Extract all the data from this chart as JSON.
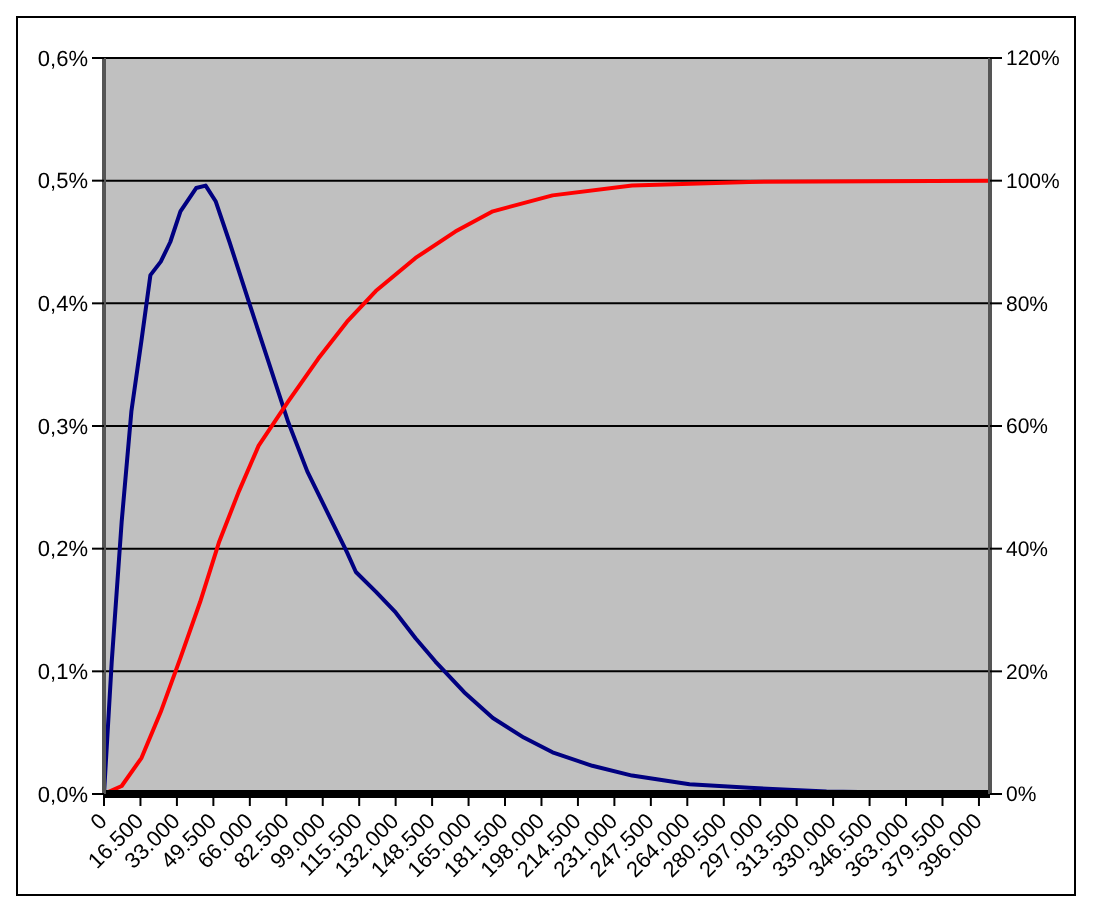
{
  "chart_data": {
    "type": "line",
    "xlim": [
      0,
      401000
    ],
    "xticks": [
      0,
      {
        "value": 16500,
        "label": "16.500"
      },
      {
        "value": 33000,
        "label": "33.000"
      },
      {
        "value": 49500,
        "label": "49.500"
      },
      {
        "value": 66000,
        "label": "66.000"
      },
      {
        "value": 82500,
        "label": "82.500"
      },
      {
        "value": 99000,
        "label": "99.000"
      },
      {
        "value": 115500,
        "label": "115.500"
      },
      {
        "value": 132000,
        "label": "132.000"
      },
      {
        "value": 148500,
        "label": "148.500"
      },
      {
        "value": 165000,
        "label": "165.000"
      },
      {
        "value": 181500,
        "label": "181.500"
      },
      {
        "value": 198000,
        "label": "198.000"
      },
      {
        "value": 214500,
        "label": "214.500"
      },
      {
        "value": 231000,
        "label": "231.000"
      },
      {
        "value": 247500,
        "label": "247.500"
      },
      {
        "value": 264000,
        "label": "264.000"
      },
      {
        "value": 280500,
        "label": "280.500"
      },
      {
        "value": 297000,
        "label": "297.000"
      },
      {
        "value": 313500,
        "label": "313.500"
      },
      {
        "value": 330000,
        "label": "330.000"
      },
      {
        "value": 346500,
        "label": "346.500"
      },
      {
        "value": 363000,
        "label": "363.000"
      },
      {
        "value": 379500,
        "label": "379.500"
      },
      {
        "value": 396000,
        "label": "396.000"
      }
    ],
    "ylim": [
      0,
      0.6
    ],
    "yticks": [
      {
        "value": 0,
        "label": "0,0%"
      },
      {
        "value": 0.1,
        "label": "0,1%"
      },
      {
        "value": 0.2,
        "label": "0,2%"
      },
      {
        "value": 0.3,
        "label": "0,3%"
      },
      {
        "value": 0.4,
        "label": "0,4%"
      },
      {
        "value": 0.5,
        "label": "0,5%"
      },
      {
        "value": 0.6,
        "label": "0,6%"
      }
    ],
    "y2lim": [
      0,
      120
    ],
    "y2ticks": [
      {
        "value": 0,
        "label": "0%"
      },
      {
        "value": 20,
        "label": "20%"
      },
      {
        "value": 40,
        "label": "40%"
      },
      {
        "value": 60,
        "label": "60%"
      },
      {
        "value": 80,
        "label": "80%"
      },
      {
        "value": 100,
        "label": "100%"
      },
      {
        "value": 120,
        "label": "120%"
      }
    ],
    "grid": "y",
    "marker": "none",
    "line_style": "solid",
    "series": [
      {
        "color": "#000080",
        "x": [
          0,
          3500,
          8000,
          12400,
          16900,
          21000,
          25700,
          30000,
          34600,
          41700,
          46000,
          50600,
          56800,
          65600,
          74500,
          83400,
          92000,
          101000,
          110000,
          114000,
          123000,
          132000,
          141000,
          150000,
          163000,
          176000,
          190000,
          203000,
          221000,
          239000,
          265000,
          292000,
          327000,
          401000
        ],
        "values": [
          0,
          0.108,
          0.222,
          0.312,
          0.369,
          0.423,
          0.434,
          0.45,
          0.475,
          0.494,
          0.496,
          0.483,
          0.45,
          0.401,
          0.352,
          0.303,
          0.263,
          0.23,
          0.197,
          0.181,
          0.165,
          0.148,
          0.127,
          0.108,
          0.083,
          0.062,
          0.046,
          0.034,
          0.023,
          0.015,
          0.008,
          0.005,
          0.002,
          0
        ]
      },
      {
        "color": "#ff0000",
        "axis": "y2",
        "x": [
          0,
          8000,
          17000,
          25700,
          34600,
          43500,
          52000,
          61000,
          70000,
          83400,
          97000,
          110000,
          123000,
          141000,
          159000,
          176000,
          203000,
          239000,
          292000,
          401000
        ],
        "values": [
          0,
          1.3,
          5.9,
          13.4,
          22.2,
          31.3,
          41,
          49.3,
          56.8,
          64,
          71,
          77,
          82,
          87.4,
          91.7,
          95,
          97.6,
          99.2,
          99.8,
          100
        ]
      }
    ]
  }
}
